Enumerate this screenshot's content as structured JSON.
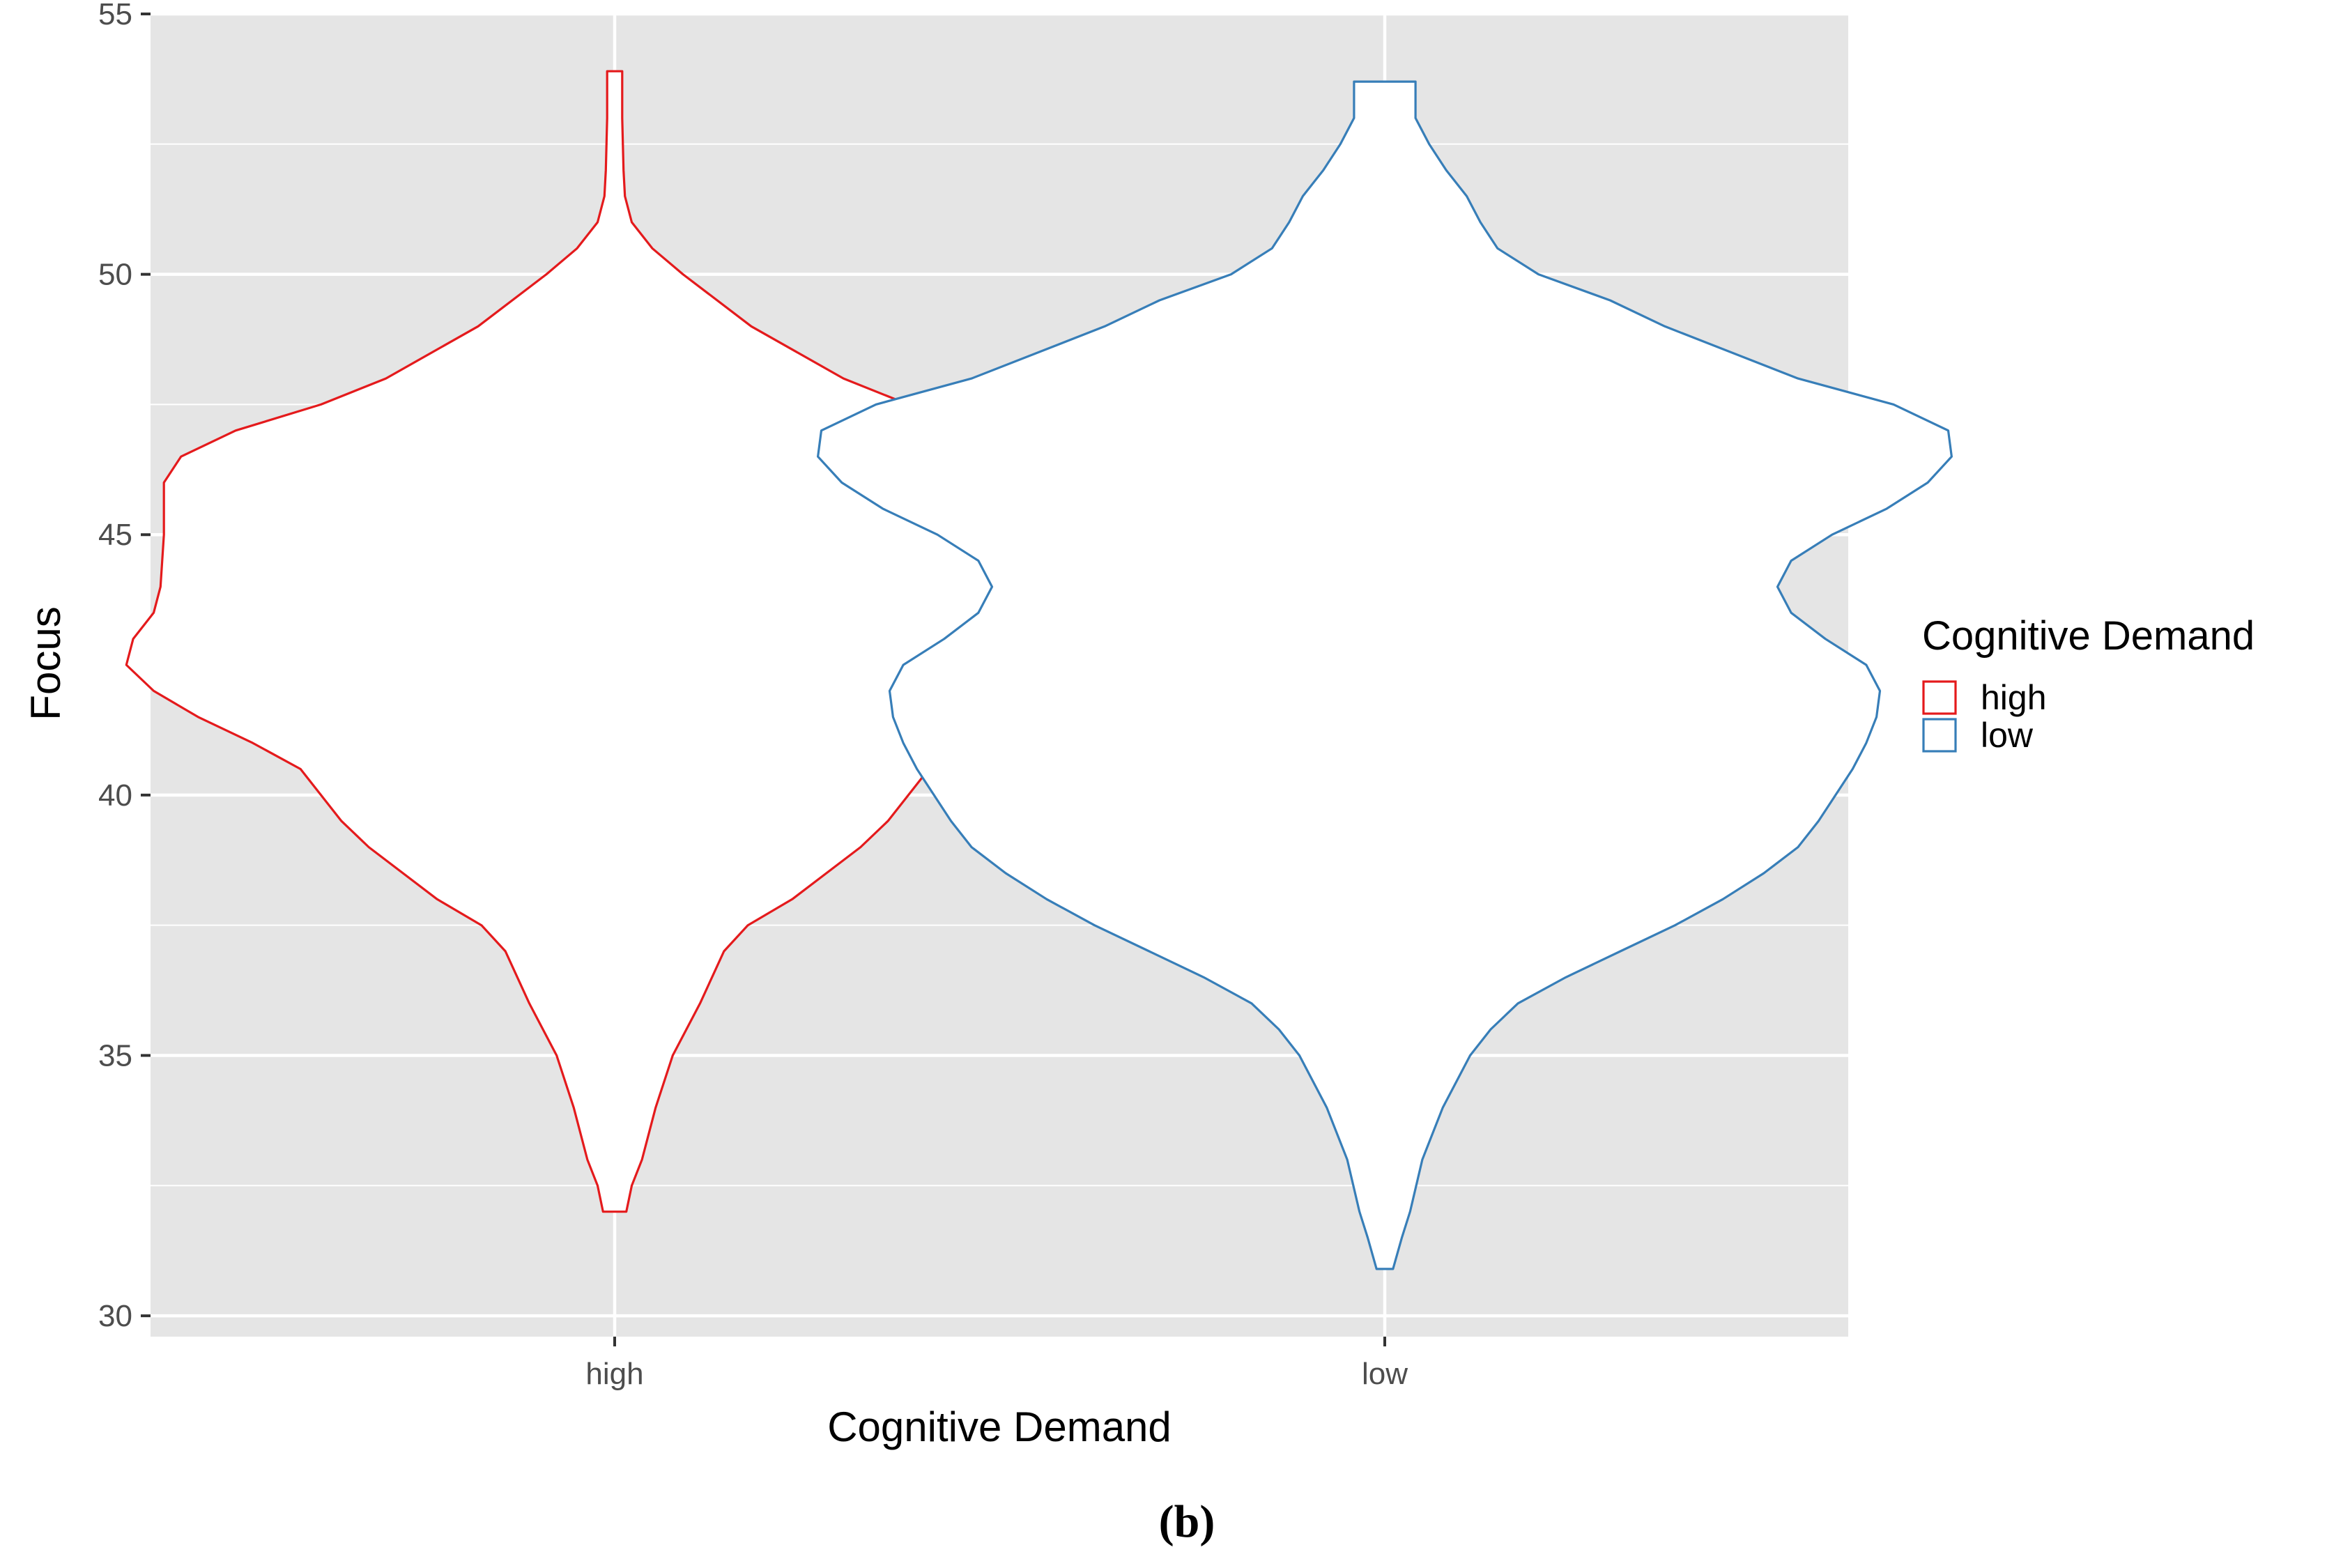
{
  "chart_data": {
    "type": "violin",
    "title": "",
    "xlabel": "Cognitive Demand",
    "ylabel": "Focus",
    "categories": [
      "high",
      "low"
    ],
    "ylim": [
      29.6,
      55
    ],
    "yticks": [
      30,
      35,
      40,
      45,
      50,
      55
    ],
    "grid": true,
    "legend": {
      "title": "Cognitive Demand",
      "placement": "right",
      "entries": [
        "high",
        "low"
      ]
    },
    "colors": {
      "high": "#e41a1c",
      "low": "#377eb8",
      "panel": "#e5e5e5",
      "grid": "#ffffff"
    },
    "series": [
      {
        "name": "high",
        "min": 32.0,
        "max": 53.9,
        "density_profile": [
          [
            32.0,
            0.017
          ],
          [
            32.5,
            0.025
          ],
          [
            33.0,
            0.04
          ],
          [
            34.0,
            0.06
          ],
          [
            35.0,
            0.085
          ],
          [
            36.0,
            0.125
          ],
          [
            37.0,
            0.16
          ],
          [
            37.5,
            0.195
          ],
          [
            38.0,
            0.26
          ],
          [
            39.0,
            0.36
          ],
          [
            39.5,
            0.4
          ],
          [
            40.0,
            0.43
          ],
          [
            40.5,
            0.46
          ],
          [
            41.0,
            0.53
          ],
          [
            41.5,
            0.61
          ],
          [
            42.0,
            0.675
          ],
          [
            42.5,
            0.715
          ],
          [
            43.0,
            0.705
          ],
          [
            43.5,
            0.675
          ],
          [
            44.0,
            0.665
          ],
          [
            45.0,
            0.66
          ],
          [
            46.0,
            0.66
          ],
          [
            46.5,
            0.635
          ],
          [
            47.0,
            0.555
          ],
          [
            47.5,
            0.43
          ],
          [
            48.0,
            0.335
          ],
          [
            49.0,
            0.2
          ],
          [
            50.0,
            0.1
          ],
          [
            50.5,
            0.055
          ],
          [
            51.0,
            0.025
          ],
          [
            51.5,
            0.015
          ],
          [
            52.0,
            0.013
          ],
          [
            53.0,
            0.011
          ],
          [
            53.9,
            0.011
          ]
        ]
      },
      {
        "name": "low",
        "min": 30.9,
        "max": 53.7,
        "density_profile": [
          [
            30.9,
            0.012
          ],
          [
            31.5,
            0.025
          ],
          [
            32.0,
            0.037
          ],
          [
            33.0,
            0.055
          ],
          [
            34.0,
            0.085
          ],
          [
            35.0,
            0.125
          ],
          [
            35.5,
            0.155
          ],
          [
            36.0,
            0.195
          ],
          [
            36.5,
            0.265
          ],
          [
            37.0,
            0.345
          ],
          [
            37.5,
            0.425
          ],
          [
            38.0,
            0.495
          ],
          [
            38.5,
            0.555
          ],
          [
            39.0,
            0.605
          ],
          [
            39.5,
            0.635
          ],
          [
            40.0,
            0.66
          ],
          [
            40.5,
            0.685
          ],
          [
            41.0,
            0.705
          ],
          [
            41.5,
            0.72
          ],
          [
            42.0,
            0.725
          ],
          [
            42.5,
            0.705
          ],
          [
            43.0,
            0.645
          ],
          [
            43.5,
            0.595
          ],
          [
            44.0,
            0.575
          ],
          [
            44.5,
            0.595
          ],
          [
            45.0,
            0.655
          ],
          [
            45.5,
            0.735
          ],
          [
            46.0,
            0.795
          ],
          [
            46.5,
            0.83
          ],
          [
            47.0,
            0.825
          ],
          [
            47.5,
            0.745
          ],
          [
            48.0,
            0.605
          ],
          [
            49.0,
            0.41
          ],
          [
            49.5,
            0.33
          ],
          [
            50.0,
            0.225
          ],
          [
            50.5,
            0.165
          ],
          [
            51.0,
            0.14
          ],
          [
            51.5,
            0.12
          ],
          [
            52.0,
            0.09
          ],
          [
            52.5,
            0.065
          ],
          [
            53.0,
            0.045
          ],
          [
            53.7,
            0.045
          ]
        ]
      }
    ]
  },
  "caption": "(b)"
}
